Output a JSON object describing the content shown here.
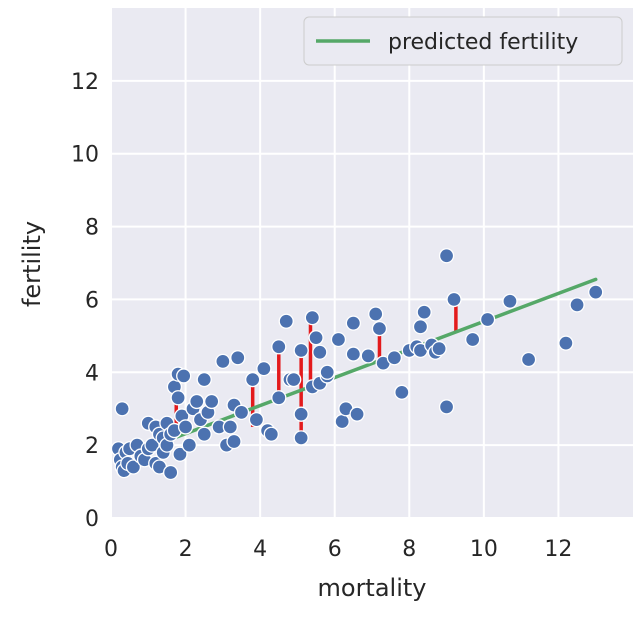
{
  "chart_data": {
    "type": "scatter",
    "xlabel": "mortality",
    "ylabel": "fertility",
    "xlim": [
      0,
      14
    ],
    "ylim": [
      0,
      14
    ],
    "x_ticks": [
      "0",
      "2",
      "4",
      "6",
      "8",
      "10",
      "12"
    ],
    "y_ticks": [
      "0",
      "2",
      "4",
      "6",
      "8",
      "10",
      "12"
    ],
    "grid": true,
    "legend_position": "top-right",
    "colors": {
      "background": "#eaeaf2",
      "points": "#4c72b0",
      "line": "#55a868",
      "residuals": "#e31a1c"
    },
    "series": [
      {
        "type": "scatter",
        "points": [
          [
            0.3,
            3.0
          ],
          [
            0.2,
            1.9
          ],
          [
            0.25,
            1.6
          ],
          [
            0.3,
            1.4
          ],
          [
            0.35,
            1.3
          ],
          [
            0.4,
            1.8
          ],
          [
            0.45,
            1.5
          ],
          [
            0.5,
            1.9
          ],
          [
            0.6,
            1.4
          ],
          [
            0.7,
            2.0
          ],
          [
            0.8,
            1.7
          ],
          [
            0.9,
            1.6
          ],
          [
            1.0,
            2.6
          ],
          [
            1.0,
            1.9
          ],
          [
            1.1,
            2.0
          ],
          [
            1.2,
            2.5
          ],
          [
            1.2,
            1.5
          ],
          [
            1.3,
            2.3
          ],
          [
            1.3,
            1.4
          ],
          [
            1.4,
            2.2
          ],
          [
            1.4,
            1.8
          ],
          [
            1.5,
            2.6
          ],
          [
            1.5,
            2.0
          ],
          [
            1.6,
            1.25
          ],
          [
            1.6,
            2.3
          ],
          [
            1.7,
            3.6
          ],
          [
            1.7,
            2.4
          ],
          [
            1.8,
            3.95
          ],
          [
            1.8,
            3.3
          ],
          [
            1.85,
            1.75
          ],
          [
            1.9,
            2.8
          ],
          [
            1.95,
            3.9
          ],
          [
            2.0,
            2.5
          ],
          [
            2.1,
            2.0
          ],
          [
            2.2,
            3.0
          ],
          [
            2.3,
            3.2
          ],
          [
            2.4,
            2.7
          ],
          [
            2.5,
            3.8
          ],
          [
            2.5,
            2.3
          ],
          [
            2.6,
            2.9
          ],
          [
            2.7,
            3.2
          ],
          [
            2.9,
            2.5
          ],
          [
            3.0,
            4.3
          ],
          [
            3.1,
            2.0
          ],
          [
            3.2,
            2.5
          ],
          [
            3.3,
            2.1
          ],
          [
            3.3,
            3.1
          ],
          [
            3.4,
            4.4
          ],
          [
            3.5,
            2.9
          ],
          [
            3.8,
            3.8
          ],
          [
            3.9,
            2.7
          ],
          [
            4.1,
            4.1
          ],
          [
            4.2,
            2.4
          ],
          [
            4.3,
            2.3
          ],
          [
            4.5,
            4.7
          ],
          [
            4.5,
            3.3
          ],
          [
            4.7,
            5.4
          ],
          [
            4.8,
            3.8
          ],
          [
            4.9,
            3.8
          ],
          [
            5.1,
            4.6
          ],
          [
            5.1,
            2.85
          ],
          [
            5.1,
            2.2
          ],
          [
            5.4,
            5.5
          ],
          [
            5.4,
            3.6
          ],
          [
            5.5,
            4.95
          ],
          [
            5.6,
            4.55
          ],
          [
            5.6,
            3.7
          ],
          [
            5.8,
            3.9
          ],
          [
            5.8,
            4.0
          ],
          [
            6.1,
            4.9
          ],
          [
            6.2,
            2.65
          ],
          [
            6.3,
            3.0
          ],
          [
            6.5,
            5.35
          ],
          [
            6.5,
            4.5
          ],
          [
            6.6,
            2.85
          ],
          [
            6.9,
            4.45
          ],
          [
            7.1,
            5.6
          ],
          [
            7.2,
            5.2
          ],
          [
            7.3,
            4.25
          ],
          [
            7.6,
            4.4
          ],
          [
            7.8,
            3.45
          ],
          [
            8.0,
            4.6
          ],
          [
            8.2,
            4.7
          ],
          [
            8.3,
            4.6
          ],
          [
            8.3,
            5.25
          ],
          [
            8.4,
            5.65
          ],
          [
            8.6,
            4.75
          ],
          [
            8.7,
            4.55
          ],
          [
            8.8,
            4.65
          ],
          [
            9.0,
            7.2
          ],
          [
            9.0,
            3.05
          ],
          [
            9.2,
            6.0
          ],
          [
            9.7,
            4.9
          ],
          [
            10.1,
            5.45
          ],
          [
            10.7,
            5.95
          ],
          [
            11.2,
            4.35
          ],
          [
            12.2,
            4.8
          ],
          [
            12.5,
            5.85
          ],
          [
            13.0,
            6.2
          ]
        ]
      },
      {
        "type": "line",
        "name": "predicted fertility",
        "x": [
          1.7,
          13.0
        ],
        "y": [
          2.2,
          6.55
        ]
      },
      {
        "type": "residual-segments",
        "segments": [
          [
            0.3,
            1.35,
            1.8
          ],
          [
            0.85,
            1.55,
            2.0
          ],
          [
            1.3,
            2.1,
            2.2
          ],
          [
            1.55,
            2.0,
            2.25
          ],
          [
            1.75,
            2.3,
            3.95
          ],
          [
            3.8,
            2.5,
            3.8
          ],
          [
            4.5,
            3.3,
            4.7
          ],
          [
            5.1,
            2.2,
            4.6
          ],
          [
            5.35,
            3.6,
            5.5
          ],
          [
            7.2,
            4.3,
            5.2
          ],
          [
            8.7,
            4.55,
            4.85
          ],
          [
            9.25,
            5.1,
            6.0
          ]
        ]
      }
    ]
  }
}
